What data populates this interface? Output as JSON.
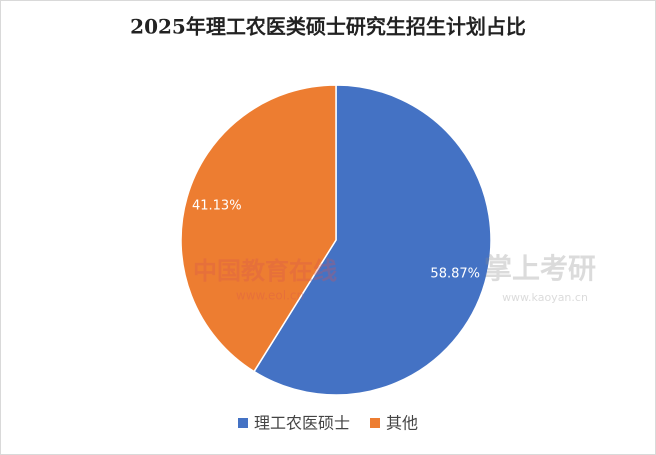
{
  "chart_data": {
    "type": "pie",
    "title": "2025年理工农医类硕士研究生招生计划占比",
    "categories": [
      "理工农医硕士",
      "其他"
    ],
    "values": [
      58.87,
      41.13
    ],
    "value_labels": [
      "58.87%",
      "41.13%"
    ],
    "colors": [
      "#4472c4",
      "#ed7d31"
    ],
    "legend": "bottom",
    "watermarks": [
      "中国教育在线",
      "www.eol.cn",
      "掌上考研",
      "www.kaoyan.cn"
    ]
  }
}
